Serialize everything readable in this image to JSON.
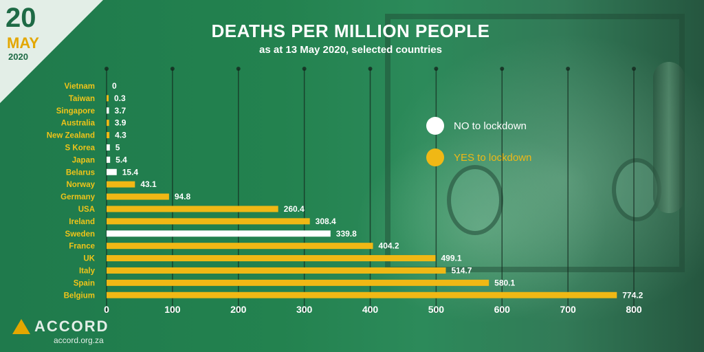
{
  "badge": {
    "day": "20",
    "month": "MAY",
    "year": "2020"
  },
  "chart_data": {
    "type": "bar",
    "orientation": "horizontal",
    "title": "DEATHS PER MILLION PEOPLE",
    "subtitle": "as at 13 May 2020, selected countries",
    "xlabel": "",
    "ylabel": "",
    "xlim": [
      0,
      800
    ],
    "xticks": [
      "0",
      "100",
      "200",
      "300",
      "400",
      "500",
      "600",
      "700",
      "800"
    ],
    "grid": true,
    "legend_position": "right",
    "categories": [
      "Vietnam",
      "Taiwan",
      "Singapore",
      "Australia",
      "New Zealand",
      "S Korea",
      "Japan",
      "Belarus",
      "Norway",
      "Germany",
      "USA",
      "Ireland",
      "Sweden",
      "France",
      "UK",
      "Italy",
      "Spain",
      "Belgium"
    ],
    "values": [
      0,
      0.3,
      3.7,
      3.9,
      4.3,
      5,
      5.4,
      15.4,
      43.1,
      94.8,
      260.4,
      308.4,
      339.8,
      404.2,
      499.1,
      514.7,
      580.1,
      774.2
    ],
    "value_labels": [
      "0",
      "0.3",
      "3.7",
      "3.9",
      "4.3",
      "5",
      "5.4",
      "15.4",
      "43.1",
      "94.8",
      "260.4",
      "308.4",
      "339.8",
      "404.2",
      "499.1",
      "514.7",
      "580.1",
      "774.2"
    ],
    "lockdown": [
      "no",
      "yes",
      "no",
      "yes",
      "yes",
      "no",
      "no",
      "no",
      "yes",
      "yes",
      "yes",
      "yes",
      "no",
      "yes",
      "yes",
      "yes",
      "yes",
      "yes"
    ],
    "legend": [
      {
        "key": "no",
        "label": "NO to lockdown",
        "color": "#ffffff"
      },
      {
        "key": "yes",
        "label": "YES to lockdown",
        "color": "#f0b815"
      }
    ]
  },
  "logo": {
    "name": "ACCORD",
    "url": "accord.org.za"
  }
}
